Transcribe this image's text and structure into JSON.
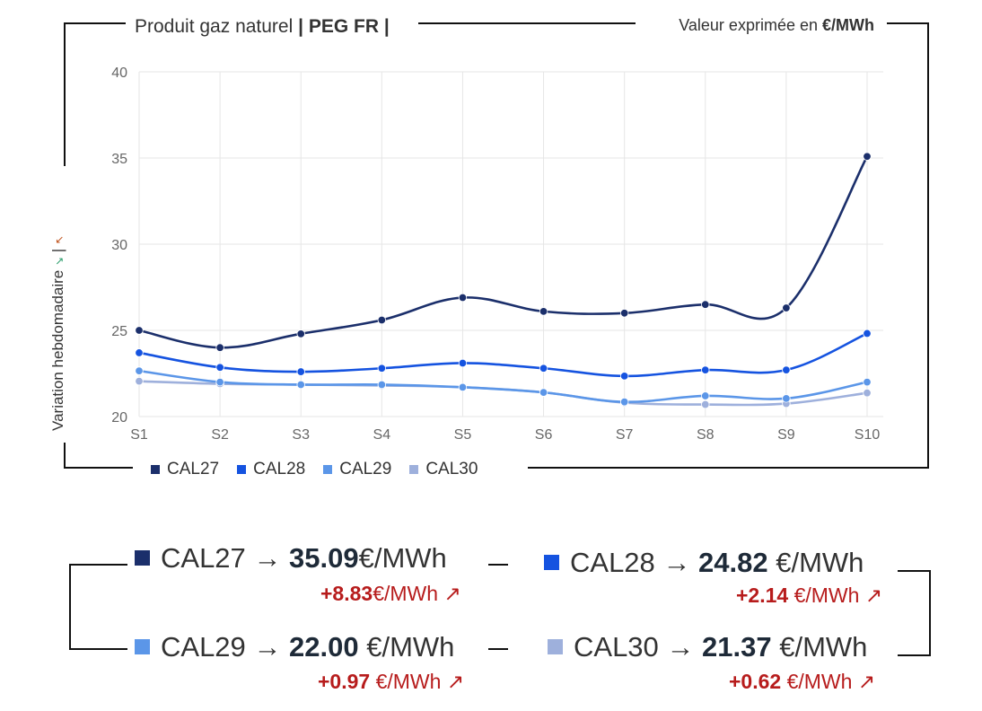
{
  "header": {
    "product_prefix": "Produit gaz naturel",
    "product_code": "| PEG FR |",
    "unit_prefix": "Valeur exprimée en",
    "unit": "€/MWh"
  },
  "y_axis_label": "Variation hebdomadaire",
  "y_axis_arrow_down": "↘",
  "y_axis_arrow_up": "↖",
  "y_axis_sep": "|",
  "colors": {
    "CAL27": "#1b2f6b",
    "CAL28": "#1553e0",
    "CAL29": "#5b96e8",
    "CAL30": "#9eb0dc",
    "delta": "#b71c1c"
  },
  "chart_data": {
    "type": "line",
    "title": "Produit gaz naturel | PEG FR |",
    "xlabel": "",
    "ylabel": "Variation hebdomadaire",
    "categories": [
      "S1",
      "S2",
      "S3",
      "S4",
      "S5",
      "S6",
      "S7",
      "S8",
      "S9",
      "S10"
    ],
    "ylim": [
      20,
      40
    ],
    "yticks": [
      20,
      25,
      30,
      35,
      40
    ],
    "grid": true,
    "legend": "bottom-left",
    "series": [
      {
        "name": "CAL27",
        "values": [
          25.0,
          24.0,
          24.8,
          25.6,
          26.9,
          26.1,
          26.0,
          26.5,
          26.3,
          35.09
        ]
      },
      {
        "name": "CAL28",
        "values": [
          23.7,
          22.85,
          22.6,
          22.8,
          23.1,
          22.8,
          22.35,
          22.7,
          22.7,
          24.82
        ]
      },
      {
        "name": "CAL29",
        "values": [
          22.65,
          22.0,
          21.85,
          21.85,
          21.7,
          21.4,
          20.85,
          21.2,
          21.05,
          22.0
        ]
      },
      {
        "name": "CAL30",
        "values": [
          22.05,
          21.9,
          21.85,
          21.8,
          21.7,
          21.4,
          20.8,
          20.7,
          20.75,
          21.37
        ]
      }
    ]
  },
  "summary": [
    {
      "name": "CAL27",
      "value": "35.09",
      "unit": "€/MWh",
      "delta": "+8.83",
      "delta_unit": "€/MWh",
      "arrow": "↗"
    },
    {
      "name": "CAL28",
      "value": "24.82",
      "unit": "€/MWh",
      "delta": "+2.14",
      "delta_unit": "€/MWh",
      "arrow": "↗"
    },
    {
      "name": "CAL29",
      "value": "22.00",
      "unit": "€/MWh",
      "delta": "+0.97",
      "delta_unit": "€/MWh",
      "arrow": "↗"
    },
    {
      "name": "CAL30",
      "value": "21.37",
      "unit": "€/MWh",
      "delta": "+0.62",
      "delta_unit": "€/MWh",
      "arrow": "↗"
    }
  ],
  "arrow_symbol": "→"
}
